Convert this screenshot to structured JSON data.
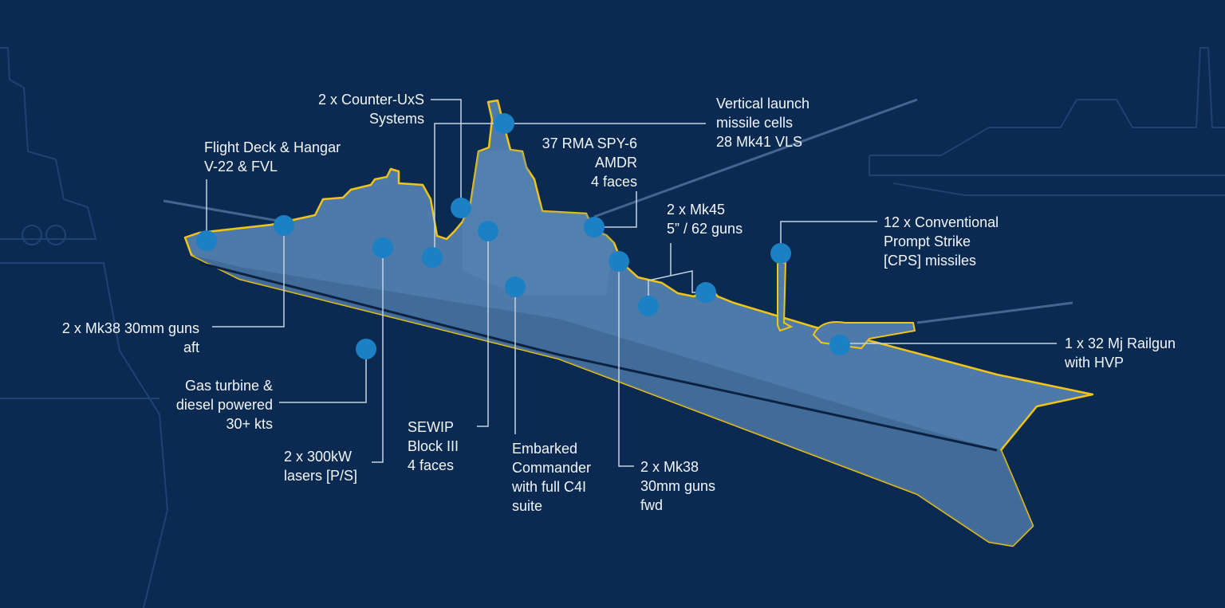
{
  "colors": {
    "background": "#0a2a52",
    "hull": "#4d7aa8",
    "outline": "#f2c418",
    "marker": "#1b80c4",
    "leader": "#c5d3e2"
  },
  "callouts": [
    {
      "id": "flight-deck",
      "lines": [
        "Flight Deck & Hangar",
        "V-22 & FVL"
      ]
    },
    {
      "id": "counter-uxs",
      "lines": [
        "2 x Counter-UxS",
        "Systems"
      ]
    },
    {
      "id": "vls",
      "lines": [
        "Vertical launch",
        "missile cells",
        "28 Mk41 VLS"
      ]
    },
    {
      "id": "spy6",
      "lines": [
        "37 RMA SPY-6",
        "AMDR",
        "4 faces"
      ]
    },
    {
      "id": "mk45",
      "lines": [
        "2 x Mk45",
        "5” / 62 guns"
      ]
    },
    {
      "id": "cps",
      "lines": [
        "12 x Conventional",
        "Prompt Strike",
        "[CPS] missiles"
      ]
    },
    {
      "id": "railgun",
      "lines": [
        "1 x 32 Mj Railgun",
        "with HVP"
      ]
    },
    {
      "id": "mk38-aft",
      "lines": [
        "2 x Mk38 30mm guns",
        "aft"
      ]
    },
    {
      "id": "gas-turbine",
      "lines": [
        "Gas turbine &",
        "diesel powered",
        "30+ kts"
      ]
    },
    {
      "id": "lasers",
      "lines": [
        "2 x 300kW",
        "lasers [P/S]"
      ]
    },
    {
      "id": "sewip",
      "lines": [
        "SEWIP",
        "Block III",
        "4 faces"
      ]
    },
    {
      "id": "commander",
      "lines": [
        "Embarked",
        "Commander",
        "with full C4I",
        "suite"
      ]
    },
    {
      "id": "mk38-fwd",
      "lines": [
        "2 x Mk38",
        "30mm guns",
        "fwd"
      ]
    }
  ]
}
